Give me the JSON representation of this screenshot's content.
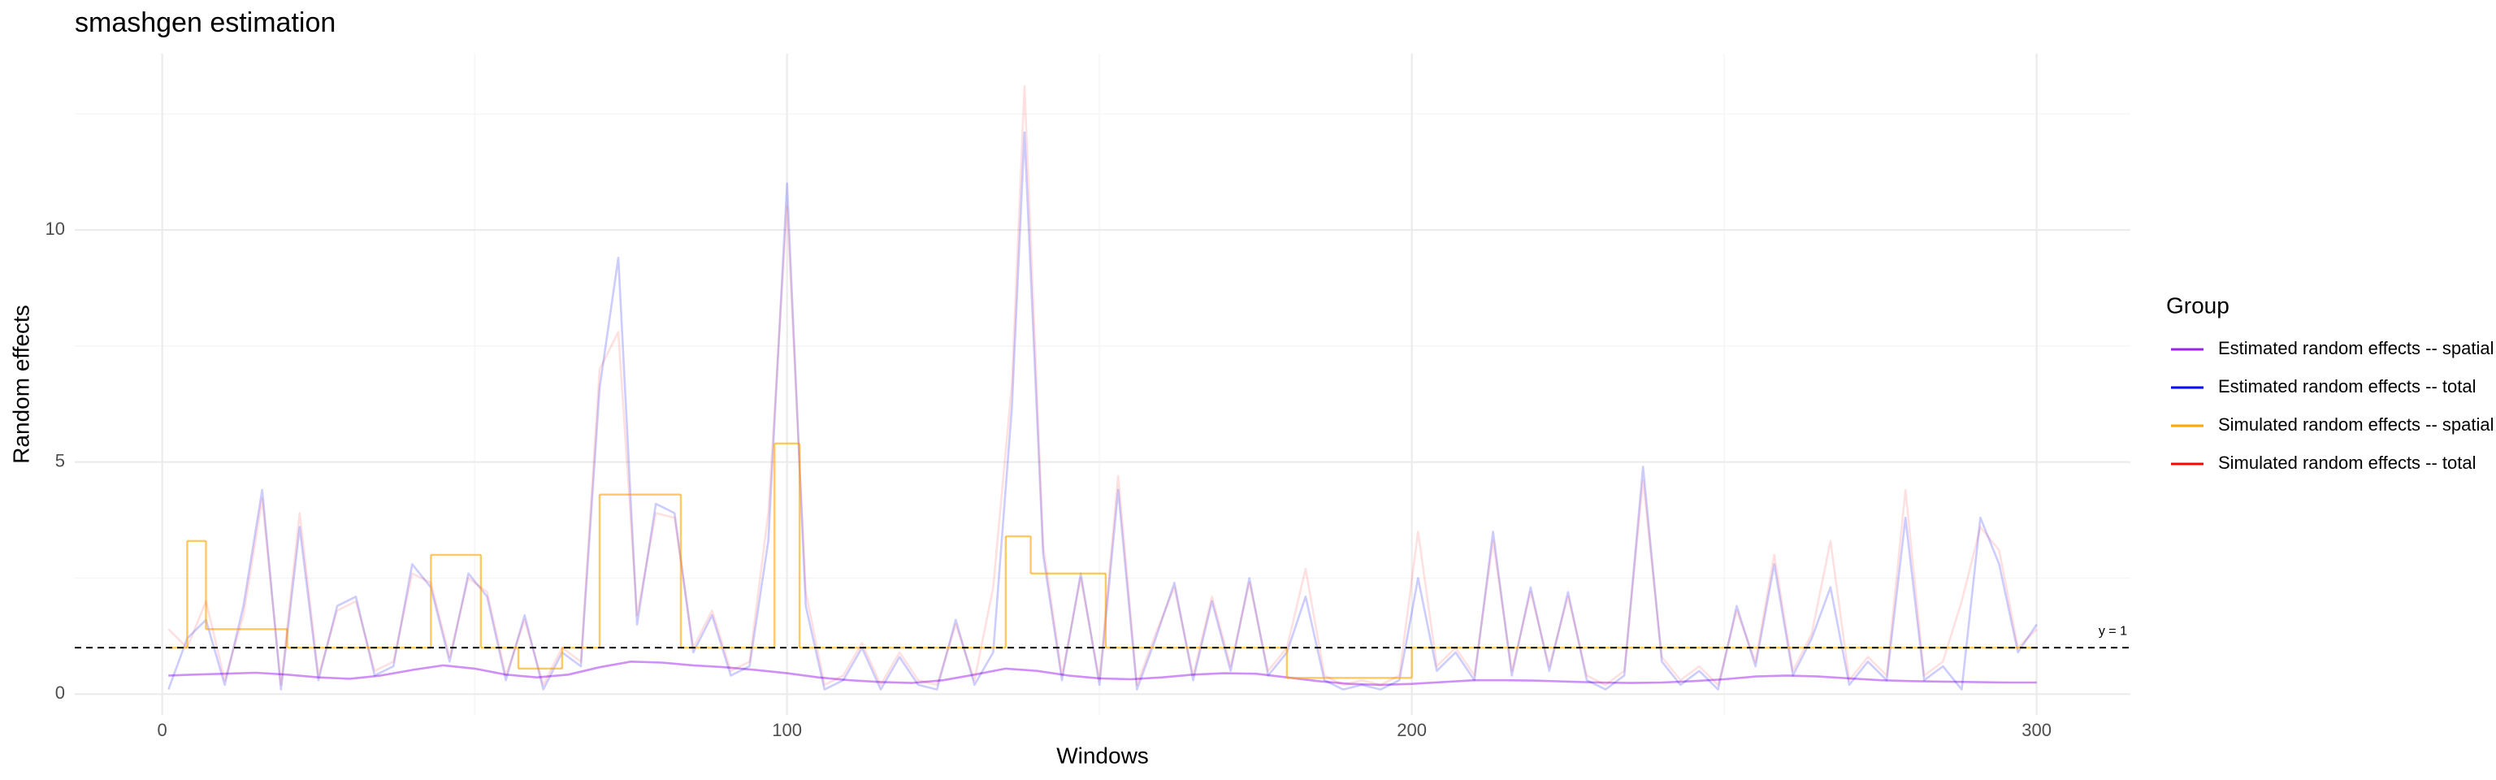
{
  "chart_data": {
    "type": "line",
    "title": "smashgen estimation",
    "x_label": "Windows",
    "y_label": "Random effects",
    "xlim": [
      -14,
      315
    ],
    "ylim": [
      -0.45,
      13.8
    ],
    "xticks": [
      0,
      100,
      200,
      300
    ],
    "yticks": [
      0,
      5,
      10
    ],
    "x_minor_ticks": [
      50,
      150,
      250
    ],
    "y_minor_ticks": [
      2.5,
      7.5,
      12.5
    ],
    "grid": true,
    "legend_title": "Group",
    "legend_position": "right",
    "hline": {
      "value": 1,
      "label": "y = 1"
    },
    "series": [
      {
        "name": "Estimated random effects -- spatial",
        "color": "#a020f0",
        "opacity": 0.5,
        "x": [
          1,
          5,
          10,
          15,
          20,
          25,
          30,
          35,
          40,
          45,
          50,
          55,
          60,
          65,
          70,
          75,
          80,
          85,
          90,
          95,
          100,
          105,
          110,
          115,
          120,
          125,
          130,
          135,
          140,
          145,
          150,
          155,
          160,
          165,
          170,
          175,
          180,
          185,
          190,
          195,
          200,
          205,
          210,
          215,
          220,
          225,
          230,
          235,
          240,
          245,
          250,
          255,
          260,
          265,
          270,
          275,
          280,
          285,
          290,
          295,
          300
        ],
        "values": [
          0.4,
          0.42,
          0.44,
          0.46,
          0.42,
          0.36,
          0.33,
          0.4,
          0.52,
          0.62,
          0.55,
          0.42,
          0.36,
          0.42,
          0.58,
          0.7,
          0.68,
          0.62,
          0.58,
          0.52,
          0.45,
          0.36,
          0.3,
          0.26,
          0.24,
          0.3,
          0.42,
          0.55,
          0.5,
          0.4,
          0.34,
          0.32,
          0.36,
          0.42,
          0.45,
          0.44,
          0.36,
          0.28,
          0.22,
          0.2,
          0.22,
          0.26,
          0.3,
          0.3,
          0.29,
          0.27,
          0.25,
          0.24,
          0.25,
          0.28,
          0.32,
          0.38,
          0.4,
          0.38,
          0.34,
          0.3,
          0.28,
          0.27,
          0.26,
          0.25,
          0.25
        ]
      },
      {
        "name": "Estimated random effects -- total",
        "color": "#0000ff",
        "opacity": 0.2,
        "x": [
          1,
          4,
          7,
          10,
          13,
          16,
          19,
          22,
          25,
          28,
          31,
          34,
          37,
          40,
          43,
          46,
          49,
          52,
          55,
          58,
          61,
          64,
          67,
          70,
          73,
          76,
          79,
          82,
          85,
          88,
          91,
          94,
          97,
          100,
          103,
          106,
          109,
          112,
          115,
          118,
          121,
          124,
          127,
          130,
          133,
          136,
          138,
          141,
          144,
          147,
          150,
          153,
          156,
          159,
          162,
          165,
          168,
          171,
          174,
          177,
          180,
          183,
          186,
          189,
          192,
          195,
          198,
          201,
          204,
          207,
          210,
          213,
          216,
          219,
          222,
          225,
          228,
          231,
          234,
          237,
          240,
          243,
          246,
          249,
          252,
          255,
          258,
          261,
          264,
          267,
          270,
          273,
          276,
          279,
          282,
          285,
          288,
          291,
          294,
          297,
          300
        ],
        "values": [
          0.1,
          1.2,
          1.6,
          0.2,
          1.9,
          4.4,
          0.1,
          3.6,
          0.3,
          1.9,
          2.1,
          0.4,
          0.6,
          2.8,
          2.3,
          0.7,
          2.6,
          2.1,
          0.3,
          1.7,
          0.1,
          0.9,
          0.6,
          6.6,
          9.4,
          1.5,
          4.1,
          3.9,
          0.9,
          1.7,
          0.4,
          0.6,
          3.3,
          11.0,
          1.9,
          0.1,
          0.3,
          1.0,
          0.1,
          0.8,
          0.2,
          0.1,
          1.6,
          0.2,
          0.9,
          6.2,
          12.1,
          3.0,
          0.3,
          2.6,
          0.2,
          4.4,
          0.1,
          1.2,
          2.4,
          0.3,
          2.0,
          0.5,
          2.5,
          0.4,
          0.9,
          2.1,
          0.3,
          0.1,
          0.2,
          0.1,
          0.3,
          2.5,
          0.5,
          0.9,
          0.3,
          3.5,
          0.4,
          2.3,
          0.5,
          2.2,
          0.3,
          0.1,
          0.4,
          4.9,
          0.7,
          0.2,
          0.5,
          0.1,
          1.9,
          0.6,
          2.8,
          0.4,
          1.2,
          2.3,
          0.2,
          0.7,
          0.3,
          3.8,
          0.3,
          0.6,
          0.1,
          3.8,
          2.8,
          0.9,
          1.5
        ]
      },
      {
        "name": "Simulated random effects -- spatial",
        "color": "#ffa500",
        "opacity": 0.6,
        "step": true,
        "x": [
          1,
          4,
          7,
          20,
          43,
          51,
          57,
          64,
          70,
          83,
          98,
          102,
          135,
          139,
          151,
          180,
          200,
          300
        ],
        "values": [
          1,
          3.3,
          1.4,
          1,
          3,
          1,
          0.55,
          1,
          4.3,
          1,
          5.4,
          1,
          3.4,
          2.6,
          1,
          0.35,
          1,
          1
        ]
      },
      {
        "name": "Simulated random effects -- total",
        "color": "#ff0000",
        "opacity": 0.12,
        "x": [
          1,
          4,
          7,
          10,
          13,
          16,
          19,
          22,
          25,
          28,
          31,
          34,
          37,
          40,
          43,
          46,
          49,
          52,
          55,
          58,
          61,
          64,
          67,
          70,
          73,
          76,
          79,
          82,
          85,
          88,
          91,
          94,
          97,
          100,
          103,
          106,
          109,
          112,
          115,
          118,
          121,
          124,
          127,
          130,
          133,
          136,
          138,
          141,
          144,
          147,
          150,
          153,
          156,
          159,
          162,
          165,
          168,
          171,
          174,
          177,
          180,
          183,
          186,
          189,
          192,
          195,
          198,
          201,
          204,
          207,
          210,
          213,
          216,
          219,
          222,
          225,
          228,
          231,
          234,
          237,
          240,
          243,
          246,
          249,
          252,
          255,
          258,
          261,
          264,
          267,
          270,
          273,
          276,
          279,
          282,
          285,
          288,
          291,
          294,
          297,
          300
        ],
        "values": [
          1.4,
          1.0,
          2.0,
          0.3,
          1.7,
          4.2,
          0.2,
          3.9,
          0.4,
          1.8,
          2.0,
          0.5,
          0.7,
          2.6,
          2.4,
          0.8,
          2.5,
          2.2,
          0.4,
          1.6,
          0.2,
          1.0,
          0.7,
          7.0,
          7.8,
          1.7,
          3.9,
          3.8,
          1.0,
          1.8,
          0.5,
          0.7,
          3.9,
          10.5,
          2.2,
          0.2,
          0.4,
          1.1,
          0.2,
          0.9,
          0.3,
          0.2,
          1.5,
          0.3,
          2.3,
          6.7,
          13.1,
          3.2,
          0.4,
          2.5,
          0.3,
          4.7,
          0.2,
          1.3,
          2.3,
          0.4,
          2.1,
          0.6,
          2.4,
          0.5,
          1.0,
          2.7,
          0.4,
          0.2,
          0.3,
          0.2,
          0.4,
          3.5,
          0.6,
          1.0,
          0.4,
          3.3,
          0.5,
          2.2,
          0.6,
          2.1,
          0.4,
          0.2,
          0.5,
          4.6,
          0.8,
          0.3,
          0.6,
          0.2,
          1.8,
          0.7,
          3.0,
          0.5,
          1.3,
          3.3,
          0.3,
          0.8,
          0.4,
          4.4,
          0.4,
          0.7,
          2.0,
          3.6,
          3.1,
          1.0,
          1.4
        ]
      }
    ]
  }
}
